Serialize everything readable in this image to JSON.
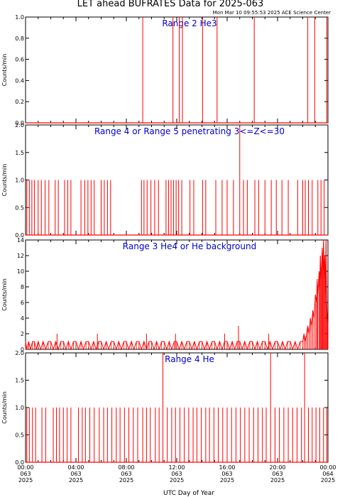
{
  "title": "LET ahead BUFRATES Data for 2025-063",
  "timestamp": "Mon Mar 10 09:55:53 2025 ACE Science Center",
  "xlabel": "UTC Day of Year",
  "x_ticks": [
    {
      "time": "00:00",
      "doy": "063",
      "year": "2025"
    },
    {
      "time": "04:00",
      "doy": "063",
      "year": "2025"
    },
    {
      "time": "08:00",
      "doy": "063",
      "year": "2025"
    },
    {
      "time": "12:00",
      "doy": "063",
      "year": "2025"
    },
    {
      "time": "16:00",
      "doy": "063",
      "year": "2025"
    },
    {
      "time": "20:00",
      "doy": "063",
      "year": "2025"
    },
    {
      "time": "00:00",
      "doy": "064",
      "year": "2025"
    }
  ],
  "colors": {
    "data": "#ff0000",
    "panel_label": "#0000cc",
    "axis": "#000000"
  },
  "chart_data": [
    {
      "type": "line",
      "title": "Range 2 He3",
      "ylabel": "Counts/min",
      "xlim_hours": [
        0,
        24
      ],
      "ylim": [
        0,
        1.0
      ],
      "y_ticks": [
        "0.0",
        "0.2",
        "0.4",
        "0.6",
        "0.8",
        "1.0"
      ],
      "baseline": 0,
      "spikes": [
        {
          "x": 9.3,
          "y": 1.0
        },
        {
          "x": 11.7,
          "y": 1.0
        },
        {
          "x": 12.2,
          "y": 1.0
        },
        {
          "x": 12.45,
          "y": 1.0
        },
        {
          "x": 14.05,
          "y": 1.0
        },
        {
          "x": 15.2,
          "y": 1.0
        },
        {
          "x": 18.15,
          "y": 1.0
        },
        {
          "x": 22.4,
          "y": 1.0
        },
        {
          "x": 22.95,
          "y": 1.0
        },
        {
          "x": 23.9,
          "y": 1.0
        }
      ]
    },
    {
      "type": "line",
      "title": "Range 4 or Range 5 penetrating 3<=Z<=30",
      "ylabel": "Counts/min",
      "xlim_hours": [
        0,
        24
      ],
      "ylim": [
        0,
        2.0
      ],
      "y_ticks": [
        "0.0",
        "0.5",
        "1.0",
        "1.5",
        "2.0"
      ],
      "baseline": 0,
      "spikes": [
        {
          "x": 0.1,
          "y": 1
        },
        {
          "x": 0.3,
          "y": 1
        },
        {
          "x": 0.5,
          "y": 1
        },
        {
          "x": 0.7,
          "y": 1
        },
        {
          "x": 1.0,
          "y": 1
        },
        {
          "x": 1.25,
          "y": 1
        },
        {
          "x": 1.55,
          "y": 1
        },
        {
          "x": 1.85,
          "y": 1
        },
        {
          "x": 2.35,
          "y": 1
        },
        {
          "x": 2.6,
          "y": 1
        },
        {
          "x": 3.1,
          "y": 1
        },
        {
          "x": 3.35,
          "y": 1
        },
        {
          "x": 3.6,
          "y": 1
        },
        {
          "x": 4.4,
          "y": 1
        },
        {
          "x": 4.7,
          "y": 1
        },
        {
          "x": 4.95,
          "y": 1
        },
        {
          "x": 5.2,
          "y": 1
        },
        {
          "x": 5.45,
          "y": 1
        },
        {
          "x": 6.0,
          "y": 1
        },
        {
          "x": 6.25,
          "y": 1
        },
        {
          "x": 6.5,
          "y": 1
        },
        {
          "x": 6.75,
          "y": 1
        },
        {
          "x": 9.2,
          "y": 1
        },
        {
          "x": 9.4,
          "y": 1
        },
        {
          "x": 9.65,
          "y": 1
        },
        {
          "x": 9.95,
          "y": 1
        },
        {
          "x": 10.25,
          "y": 1
        },
        {
          "x": 10.55,
          "y": 1
        },
        {
          "x": 11.15,
          "y": 1
        },
        {
          "x": 11.35,
          "y": 1
        },
        {
          "x": 11.55,
          "y": 1
        },
        {
          "x": 11.75,
          "y": 1
        },
        {
          "x": 11.95,
          "y": 1
        },
        {
          "x": 12.15,
          "y": 1
        },
        {
          "x": 12.4,
          "y": 1
        },
        {
          "x": 13.05,
          "y": 1
        },
        {
          "x": 13.35,
          "y": 1
        },
        {
          "x": 14.05,
          "y": 1
        },
        {
          "x": 14.3,
          "y": 1
        },
        {
          "x": 15.1,
          "y": 1
        },
        {
          "x": 15.6,
          "y": 1
        },
        {
          "x": 16.0,
          "y": 1
        },
        {
          "x": 16.5,
          "y": 1
        },
        {
          "x": 17.0,
          "y": 2
        },
        {
          "x": 17.3,
          "y": 1
        },
        {
          "x": 17.6,
          "y": 1
        },
        {
          "x": 18.2,
          "y": 1
        },
        {
          "x": 18.5,
          "y": 1
        },
        {
          "x": 19.0,
          "y": 1
        },
        {
          "x": 19.5,
          "y": 1
        },
        {
          "x": 19.9,
          "y": 1
        },
        {
          "x": 20.35,
          "y": 1
        },
        {
          "x": 20.85,
          "y": 1
        },
        {
          "x": 21.6,
          "y": 1
        },
        {
          "x": 22.0,
          "y": 1
        },
        {
          "x": 22.2,
          "y": 1
        },
        {
          "x": 22.45,
          "y": 1
        },
        {
          "x": 22.75,
          "y": 1
        },
        {
          "x": 23.2,
          "y": 1
        },
        {
          "x": 23.45,
          "y": 1
        },
        {
          "x": 23.7,
          "y": 1
        }
      ]
    },
    {
      "type": "line",
      "title": "Range 3 He4 or He background",
      "ylabel": "Counts/min",
      "xlim_hours": [
        0,
        24
      ],
      "ylim": [
        0,
        14
      ],
      "y_ticks": [
        "0",
        "2",
        "4",
        "6",
        "8",
        "10",
        "12",
        "14"
      ],
      "series": [
        {
          "x": 0.0,
          "y": 1
        },
        {
          "x": 0.1,
          "y": 0
        },
        {
          "x": 0.25,
          "y": 1
        },
        {
          "x": 0.4,
          "y": 0
        },
        {
          "x": 0.55,
          "y": 1
        },
        {
          "x": 0.7,
          "y": 1
        },
        {
          "x": 0.85,
          "y": 0
        },
        {
          "x": 1.0,
          "y": 1
        },
        {
          "x": 1.2,
          "y": 0
        },
        {
          "x": 1.4,
          "y": 1
        },
        {
          "x": 1.6,
          "y": 0
        },
        {
          "x": 1.8,
          "y": 1
        },
        {
          "x": 2.0,
          "y": 1
        },
        {
          "x": 2.2,
          "y": 0
        },
        {
          "x": 2.4,
          "y": 1
        },
        {
          "x": 2.6,
          "y": 0
        },
        {
          "x": 2.8,
          "y": 1
        },
        {
          "x": 3.0,
          "y": 1
        },
        {
          "x": 3.2,
          "y": 0
        },
        {
          "x": 3.4,
          "y": 1
        },
        {
          "x": 3.6,
          "y": 0
        },
        {
          "x": 3.8,
          "y": 1
        },
        {
          "x": 4.0,
          "y": 1
        },
        {
          "x": 4.2,
          "y": 0
        },
        {
          "x": 4.4,
          "y": 1
        },
        {
          "x": 4.6,
          "y": 0
        },
        {
          "x": 4.8,
          "y": 1
        },
        {
          "x": 5.0,
          "y": 1
        },
        {
          "x": 5.2,
          "y": 0
        },
        {
          "x": 5.4,
          "y": 1
        },
        {
          "x": 5.6,
          "y": 0
        },
        {
          "x": 5.8,
          "y": 1
        },
        {
          "x": 6.0,
          "y": 1
        },
        {
          "x": 6.2,
          "y": 0
        },
        {
          "x": 6.4,
          "y": 1
        },
        {
          "x": 6.6,
          "y": 0
        },
        {
          "x": 6.8,
          "y": 1
        },
        {
          "x": 7.0,
          "y": 1
        },
        {
          "x": 7.2,
          "y": 0
        },
        {
          "x": 7.4,
          "y": 1
        },
        {
          "x": 7.6,
          "y": 0
        },
        {
          "x": 7.8,
          "y": 1
        },
        {
          "x": 8.0,
          "y": 1
        },
        {
          "x": 8.2,
          "y": 0
        },
        {
          "x": 8.4,
          "y": 1
        },
        {
          "x": 8.6,
          "y": 0
        },
        {
          "x": 8.8,
          "y": 1
        },
        {
          "x": 9.0,
          "y": 1
        },
        {
          "x": 9.2,
          "y": 0
        },
        {
          "x": 9.4,
          "y": 1
        },
        {
          "x": 9.6,
          "y": 0
        },
        {
          "x": 9.8,
          "y": 1
        },
        {
          "x": 10.0,
          "y": 1
        },
        {
          "x": 10.2,
          "y": 0
        },
        {
          "x": 10.4,
          "y": 1
        },
        {
          "x": 10.6,
          "y": 0
        },
        {
          "x": 10.8,
          "y": 1
        },
        {
          "x": 11.0,
          "y": 1
        },
        {
          "x": 11.2,
          "y": 0
        },
        {
          "x": 11.4,
          "y": 1
        },
        {
          "x": 11.6,
          "y": 0
        },
        {
          "x": 11.8,
          "y": 1
        },
        {
          "x": 12.0,
          "y": 1
        },
        {
          "x": 12.2,
          "y": 0
        },
        {
          "x": 12.4,
          "y": 1
        },
        {
          "x": 12.6,
          "y": 0
        },
        {
          "x": 12.8,
          "y": 1
        },
        {
          "x": 13.0,
          "y": 1
        },
        {
          "x": 13.2,
          "y": 0
        },
        {
          "x": 13.4,
          "y": 1
        },
        {
          "x": 13.6,
          "y": 0
        },
        {
          "x": 13.8,
          "y": 1
        },
        {
          "x": 14.0,
          "y": 1
        },
        {
          "x": 14.2,
          "y": 0
        },
        {
          "x": 14.4,
          "y": 1
        },
        {
          "x": 14.6,
          "y": 0
        },
        {
          "x": 14.8,
          "y": 1
        },
        {
          "x": 15.0,
          "y": 1
        },
        {
          "x": 15.2,
          "y": 0
        },
        {
          "x": 15.4,
          "y": 1
        },
        {
          "x": 15.6,
          "y": 0
        },
        {
          "x": 15.8,
          "y": 1
        },
        {
          "x": 16.0,
          "y": 1
        },
        {
          "x": 16.2,
          "y": 0
        },
        {
          "x": 16.4,
          "y": 1
        },
        {
          "x": 16.6,
          "y": 0
        },
        {
          "x": 16.8,
          "y": 1
        },
        {
          "x": 17.0,
          "y": 1
        },
        {
          "x": 17.2,
          "y": 0
        },
        {
          "x": 17.4,
          "y": 1
        },
        {
          "x": 17.6,
          "y": 0
        },
        {
          "x": 17.8,
          "y": 1
        },
        {
          "x": 18.0,
          "y": 1
        },
        {
          "x": 18.2,
          "y": 0
        },
        {
          "x": 18.4,
          "y": 1
        },
        {
          "x": 18.6,
          "y": 0
        },
        {
          "x": 18.8,
          "y": 1
        },
        {
          "x": 19.0,
          "y": 1
        },
        {
          "x": 19.2,
          "y": 0
        },
        {
          "x": 19.4,
          "y": 1
        },
        {
          "x": 19.6,
          "y": 0
        },
        {
          "x": 19.8,
          "y": 1
        },
        {
          "x": 20.0,
          "y": 1
        },
        {
          "x": 20.2,
          "y": 0
        },
        {
          "x": 20.4,
          "y": 1
        },
        {
          "x": 20.6,
          "y": 0
        },
        {
          "x": 20.8,
          "y": 1
        },
        {
          "x": 21.0,
          "y": 1
        },
        {
          "x": 21.2,
          "y": 0
        },
        {
          "x": 21.4,
          "y": 1
        },
        {
          "x": 21.6,
          "y": 0
        },
        {
          "x": 21.8,
          "y": 1
        },
        {
          "x": 22.0,
          "y": 1
        },
        {
          "x": 22.1,
          "y": 2
        },
        {
          "x": 22.2,
          "y": 1
        },
        {
          "x": 22.3,
          "y": 2
        },
        {
          "x": 22.4,
          "y": 3
        },
        {
          "x": 22.5,
          "y": 2
        },
        {
          "x": 22.6,
          "y": 4
        },
        {
          "x": 22.7,
          "y": 3
        },
        {
          "x": 22.8,
          "y": 5
        },
        {
          "x": 22.9,
          "y": 4
        },
        {
          "x": 23.0,
          "y": 7
        },
        {
          "x": 23.1,
          "y": 6
        },
        {
          "x": 23.15,
          "y": 9
        },
        {
          "x": 23.2,
          "y": 7
        },
        {
          "x": 23.3,
          "y": 10
        },
        {
          "x": 23.35,
          "y": 8
        },
        {
          "x": 23.4,
          "y": 12
        },
        {
          "x": 23.45,
          "y": 9
        },
        {
          "x": 23.5,
          "y": 11
        },
        {
          "x": 23.55,
          "y": 13
        },
        {
          "x": 23.6,
          "y": 10
        },
        {
          "x": 23.65,
          "y": 14
        },
        {
          "x": 23.7,
          "y": 9
        },
        {
          "x": 23.75,
          "y": 12
        },
        {
          "x": 23.8,
          "y": 7
        },
        {
          "x": 23.85,
          "y": 14
        },
        {
          "x": 23.9,
          "y": 6
        },
        {
          "x": 23.95,
          "y": 4
        },
        {
          "x": 24.0,
          "y": 3
        }
      ],
      "background_spikes": [
        {
          "x": 2.5,
          "y": 2
        },
        {
          "x": 5.7,
          "y": 2
        },
        {
          "x": 9.6,
          "y": 2
        },
        {
          "x": 11.9,
          "y": 2
        },
        {
          "x": 15.8,
          "y": 2
        },
        {
          "x": 16.9,
          "y": 3
        },
        {
          "x": 19.3,
          "y": 2
        }
      ]
    },
    {
      "type": "line",
      "title": "Range 4 He",
      "ylabel": "Counts/min",
      "xlim_hours": [
        0,
        24
      ],
      "ylim": [
        0,
        2.0
      ],
      "y_ticks": [
        "0.0",
        "0.5",
        "1.0",
        "1.5",
        "2.0"
      ],
      "baseline": 0,
      "spikes": [
        {
          "x": 0.1,
          "y": 1
        },
        {
          "x": 0.3,
          "y": 1
        },
        {
          "x": 0.55,
          "y": 1
        },
        {
          "x": 0.8,
          "y": 1
        },
        {
          "x": 1.3,
          "y": 1
        },
        {
          "x": 1.6,
          "y": 1
        },
        {
          "x": 2.2,
          "y": 1
        },
        {
          "x": 2.45,
          "y": 1
        },
        {
          "x": 2.7,
          "y": 1
        },
        {
          "x": 3.0,
          "y": 1
        },
        {
          "x": 3.3,
          "y": 1
        },
        {
          "x": 3.6,
          "y": 1
        },
        {
          "x": 4.2,
          "y": 1
        },
        {
          "x": 4.5,
          "y": 1
        },
        {
          "x": 4.75,
          "y": 1
        },
        {
          "x": 5.1,
          "y": 1
        },
        {
          "x": 5.45,
          "y": 1
        },
        {
          "x": 5.85,
          "y": 1
        },
        {
          "x": 6.2,
          "y": 1
        },
        {
          "x": 6.5,
          "y": 1
        },
        {
          "x": 6.85,
          "y": 1
        },
        {
          "x": 7.2,
          "y": 1
        },
        {
          "x": 7.5,
          "y": 1
        },
        {
          "x": 7.85,
          "y": 1
        },
        {
          "x": 8.2,
          "y": 1
        },
        {
          "x": 8.55,
          "y": 1
        },
        {
          "x": 8.9,
          "y": 1
        },
        {
          "x": 9.3,
          "y": 1
        },
        {
          "x": 9.6,
          "y": 1
        },
        {
          "x": 9.9,
          "y": 1
        },
        {
          "x": 10.3,
          "y": 1
        },
        {
          "x": 10.6,
          "y": 1
        },
        {
          "x": 10.9,
          "y": 2
        },
        {
          "x": 11.25,
          "y": 1
        },
        {
          "x": 11.6,
          "y": 1
        },
        {
          "x": 11.9,
          "y": 1
        },
        {
          "x": 12.25,
          "y": 1
        },
        {
          "x": 12.6,
          "y": 1
        },
        {
          "x": 12.95,
          "y": 1
        },
        {
          "x": 13.3,
          "y": 1
        },
        {
          "x": 13.6,
          "y": 1
        },
        {
          "x": 13.95,
          "y": 1
        },
        {
          "x": 14.3,
          "y": 1
        },
        {
          "x": 14.6,
          "y": 1
        },
        {
          "x": 14.95,
          "y": 1
        },
        {
          "x": 15.3,
          "y": 1
        },
        {
          "x": 15.65,
          "y": 1
        },
        {
          "x": 16.0,
          "y": 1
        },
        {
          "x": 16.35,
          "y": 1
        },
        {
          "x": 16.7,
          "y": 1
        },
        {
          "x": 17.05,
          "y": 1
        },
        {
          "x": 17.4,
          "y": 1
        },
        {
          "x": 17.75,
          "y": 1
        },
        {
          "x": 18.1,
          "y": 1
        },
        {
          "x": 18.45,
          "y": 1
        },
        {
          "x": 18.8,
          "y": 1
        },
        {
          "x": 19.1,
          "y": 1
        },
        {
          "x": 19.45,
          "y": 2
        },
        {
          "x": 19.8,
          "y": 1
        },
        {
          "x": 20.15,
          "y": 1
        },
        {
          "x": 20.5,
          "y": 1
        },
        {
          "x": 20.85,
          "y": 1
        },
        {
          "x": 21.2,
          "y": 1
        },
        {
          "x": 21.55,
          "y": 1
        },
        {
          "x": 21.9,
          "y": 1
        },
        {
          "x": 22.15,
          "y": 2
        },
        {
          "x": 22.45,
          "y": 1
        },
        {
          "x": 22.75,
          "y": 1
        },
        {
          "x": 23.05,
          "y": 1
        },
        {
          "x": 23.35,
          "y": 1
        },
        {
          "x": 23.65,
          "y": 1
        },
        {
          "x": 23.9,
          "y": 1
        }
      ]
    }
  ]
}
